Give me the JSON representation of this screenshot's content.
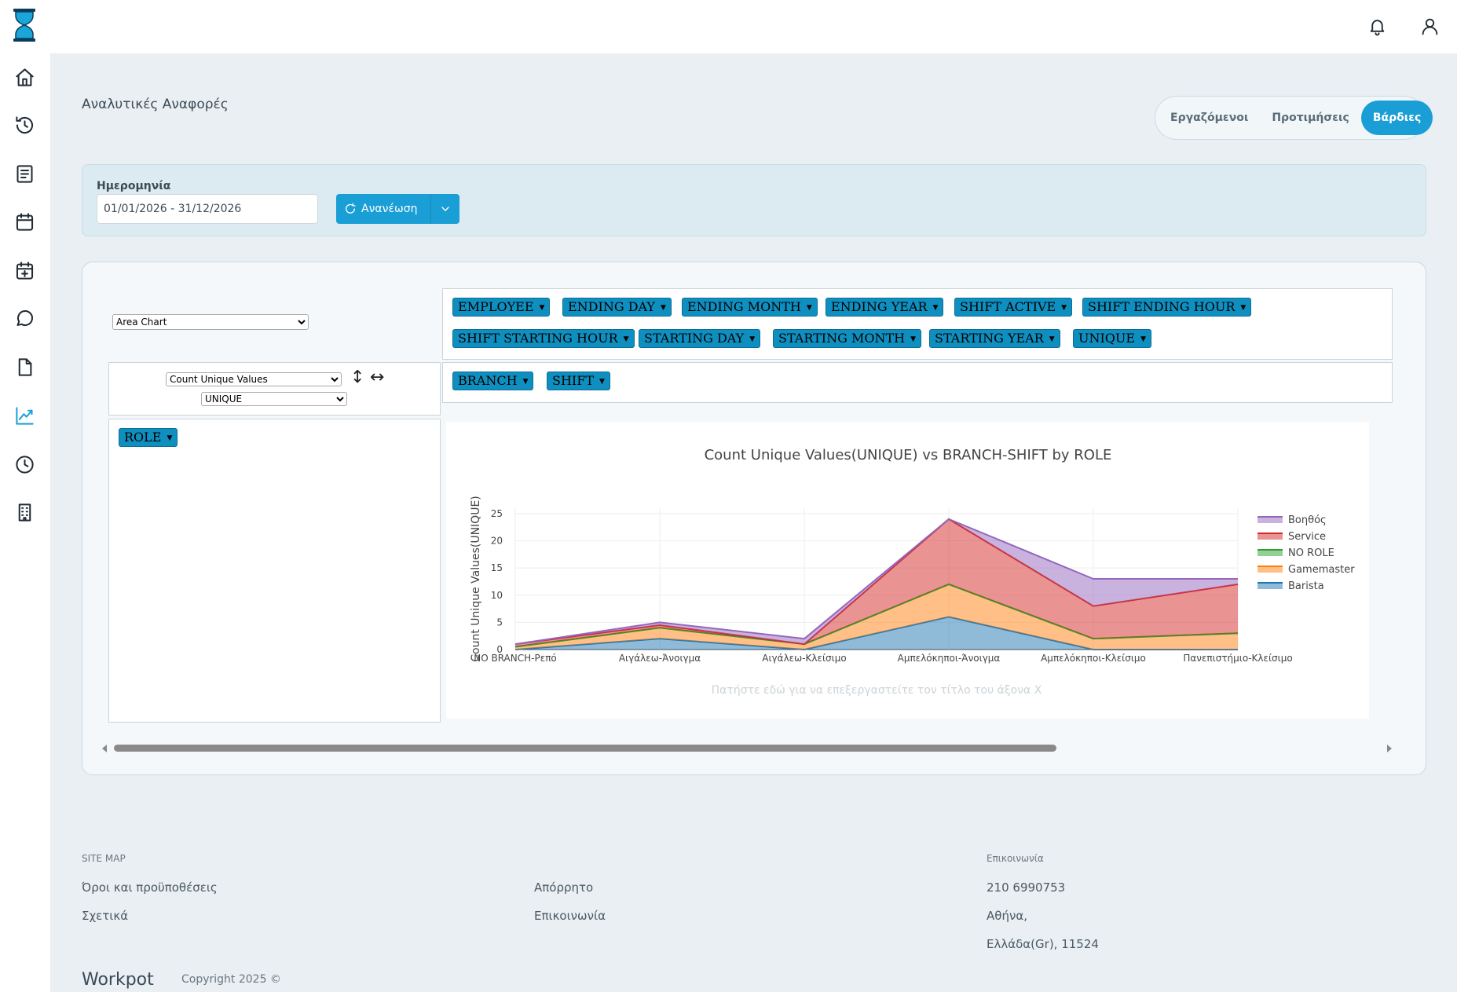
{
  "page": {
    "title": "Αναλυτικές Αναφορές"
  },
  "tabs": [
    {
      "label": "Εργαζόμενοι",
      "active": false
    },
    {
      "label": "Προτιμήσεις",
      "active": false
    },
    {
      "label": "Βάρδιες",
      "active": true
    }
  ],
  "filter": {
    "date_label": "Ημερομηνία",
    "date_value": "01/01/2026 - 31/12/2026",
    "refresh_label": "Ανανέωση"
  },
  "pivot": {
    "renderer": "Area Chart",
    "aggregator": "Count Unique Values",
    "aggregator_field": "UNIQUE",
    "attributes": [
      "EMPLOYEE",
      "ENDING DAY",
      "ENDING MONTH",
      "ENDING YEAR",
      "SHIFT ACTIVE",
      "SHIFT ENDING HOUR",
      "SHIFT STARTING HOUR",
      "STARTING DAY",
      "STARTING MONTH",
      "STARTING YEAR",
      "UNIQUE"
    ],
    "cols": [
      "BRANCH",
      "SHIFT"
    ],
    "rows": [
      "ROLE"
    ]
  },
  "chart_data": {
    "type": "area",
    "title": "Count Unique Values(UNIQUE) vs BRANCH-SHIFT by ROLE",
    "xlabel": "Πατήστε εδώ για να επεξεργαστείτε τον τίτλο του άξονα Χ",
    "ylabel": "Count Unique Values(UNIQUE)",
    "categories": [
      "NO BRANCH-Ρεπό",
      "Αιγάλεω-Άνοιγμα",
      "Αιγάλεω-Κλείσιμο",
      "Αμπελόκηποι-Άνοιγμα",
      "Αμπελόκηποι-Κλείσιμο",
      "Πανεπιστήμιο-Κλείσιμο"
    ],
    "stacked": true,
    "ylim": [
      0,
      26
    ],
    "yticks": [
      0,
      5,
      10,
      15,
      20,
      25
    ],
    "legend_position": "right",
    "series": [
      {
        "name": "Barista",
        "color": "#1f77b4",
        "values": [
          0,
          2,
          0,
          6,
          0,
          0
        ]
      },
      {
        "name": "Gamemaster",
        "color": "#ff7f0e",
        "values": [
          0.5,
          2,
          1,
          6,
          2,
          3
        ]
      },
      {
        "name": "NO ROLE",
        "color": "#2ca02c",
        "values": [
          0,
          0,
          0,
          0,
          0,
          0
        ]
      },
      {
        "name": "Service",
        "color": "#d62728",
        "values": [
          0.5,
          0.5,
          0,
          12,
          6,
          9
        ]
      },
      {
        "name": "Βοηθός",
        "color": "#9467bd",
        "values": [
          0,
          0.5,
          1,
          0,
          5,
          1
        ]
      }
    ]
  },
  "footer": {
    "sitemap_title": "SITE MAP",
    "contact_title": "Επικοινωνία",
    "links_col1": [
      "Όροι και προϋποθέσεις",
      "Σχετικά"
    ],
    "links_col2": [
      "Απόρρητο",
      "Επικοινωνία"
    ],
    "contact_lines": [
      "210 6990753",
      "Αθήνα,",
      "Ελλάδα(Gr), 11524"
    ],
    "brand": "Workpot",
    "copyright": "Copyright 2025 ©"
  }
}
